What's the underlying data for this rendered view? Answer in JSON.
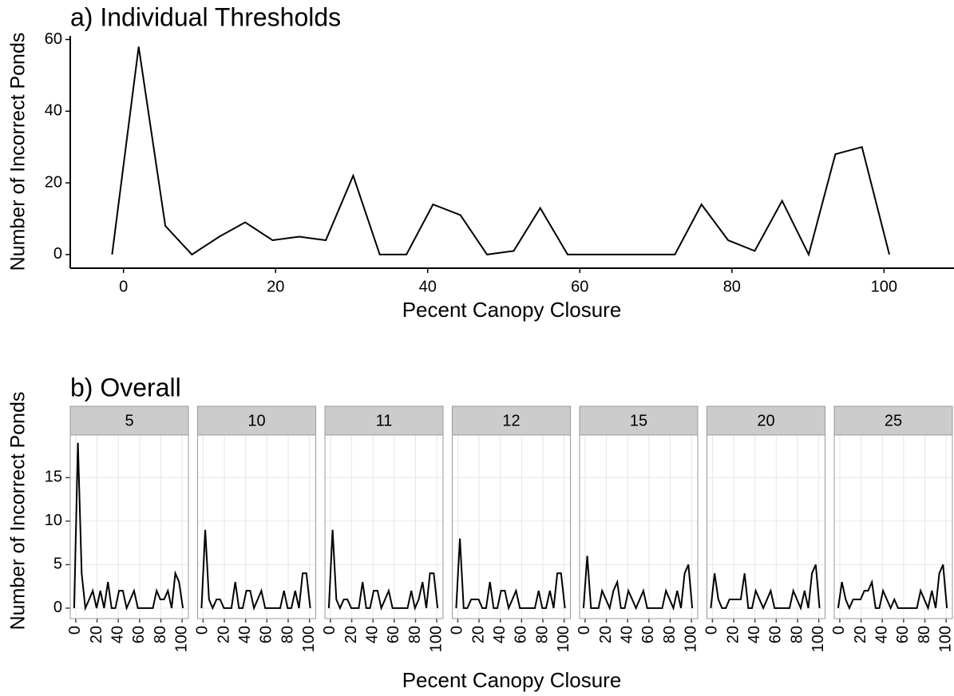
{
  "chart_data": [
    {
      "type": "line",
      "title": "a) Individual Thresholds",
      "xlabel": "Pecent Canopy Closure",
      "ylabel": "Number of Incorrect Ponds",
      "x": [
        -1.5,
        2,
        5.5,
        9,
        12.6,
        16,
        19.6,
        23.1,
        26.6,
        30.2,
        33.7,
        37.2,
        40.7,
        44.3,
        47.8,
        51.3,
        54.8,
        58.4,
        61.9,
        65.4,
        68.9,
        72.5,
        76,
        79.5,
        83,
        86.6,
        90.1,
        93.6,
        97.1,
        100.7
      ],
      "values": [
        0,
        58,
        8,
        0,
        5,
        9,
        4,
        5,
        4,
        22,
        0,
        0,
        14,
        11,
        0,
        1,
        13,
        0,
        0,
        0,
        0,
        0,
        14,
        4,
        1,
        15,
        0,
        28,
        30,
        0
      ],
      "color": "#000000",
      "xlim": [
        -7,
        109.2
      ],
      "ylim": [
        -3.8,
        61
      ],
      "xticks": [
        0,
        20,
        40,
        60,
        80,
        100
      ],
      "yticks": [
        0,
        20,
        40,
        60
      ],
      "grid": false
    },
    {
      "type": "facet-line",
      "title": "b) Overall",
      "xlabel": "Pecent Canopy Closure",
      "ylabel": "Number of Incorrect Ponds",
      "x": [
        -1.5,
        2,
        5.5,
        9,
        12.6,
        16,
        19.6,
        23.1,
        26.6,
        30.2,
        33.7,
        37.2,
        40.7,
        44.3,
        47.8,
        51.3,
        54.8,
        58.4,
        61.9,
        65.4,
        68.9,
        72.5,
        76,
        79.5,
        83,
        86.6,
        90.1,
        93.6,
        97.1,
        100.7
      ],
      "panels": [
        {
          "name": "5",
          "values": [
            0,
            19,
            4,
            0,
            1,
            2,
            0,
            2,
            0,
            3,
            0,
            0,
            2,
            2,
            0,
            1,
            2,
            0,
            0,
            0,
            0,
            0,
            2,
            1,
            1,
            2,
            0,
            4,
            3,
            0
          ]
        },
        {
          "name": "10",
          "values": [
            0,
            9,
            1,
            0,
            1,
            1,
            0,
            0,
            0,
            3,
            0,
            0,
            2,
            2,
            0,
            1,
            2,
            0,
            0,
            0,
            0,
            0,
            2,
            0,
            0,
            2,
            0,
            4,
            4,
            0
          ]
        },
        {
          "name": "11",
          "values": [
            0,
            9,
            1,
            0,
            1,
            1,
            0,
            0,
            0,
            3,
            0,
            0,
            2,
            2,
            0,
            1,
            2,
            0,
            0,
            0,
            0,
            0,
            2,
            0,
            1,
            3,
            0,
            4,
            4,
            0
          ]
        },
        {
          "name": "12",
          "values": [
            0,
            8,
            0,
            0,
            1,
            1,
            1,
            0,
            0,
            3,
            0,
            0,
            2,
            2,
            0,
            1,
            2,
            0,
            0,
            0,
            0,
            0,
            2,
            0,
            0,
            2,
            0,
            4,
            4,
            0
          ]
        },
        {
          "name": "15",
          "values": [
            0,
            6,
            0,
            0,
            0,
            2,
            1,
            0,
            2,
            3,
            0,
            0,
            2,
            1,
            0,
            1,
            2,
            0,
            0,
            0,
            0,
            0,
            2,
            1,
            0,
            2,
            0,
            4,
            5,
            0
          ]
        },
        {
          "name": "20",
          "values": [
            0,
            4,
            1,
            0,
            0,
            1,
            1,
            1,
            1,
            4,
            0,
            0,
            2,
            1,
            0,
            1,
            2,
            0,
            0,
            0,
            0,
            0,
            2,
            1,
            0,
            2,
            0,
            4,
            5,
            0
          ]
        },
        {
          "name": "25",
          "values": [
            0,
            3,
            1,
            0,
            1,
            1,
            1,
            2,
            2,
            3,
            0,
            0,
            2,
            1,
            0,
            1,
            0,
            0,
            0,
            0,
            0,
            0,
            2,
            1,
            0,
            2,
            0,
            4,
            5,
            0
          ]
        }
      ],
      "color": "#000000",
      "xlim": [
        -5.2,
        105.9
      ],
      "ylim": [
        -1.2,
        19.9
      ],
      "xticks": [
        0,
        20,
        40,
        60,
        80,
        100
      ],
      "yticks": [
        0,
        5,
        10,
        15
      ],
      "grid": true
    }
  ]
}
